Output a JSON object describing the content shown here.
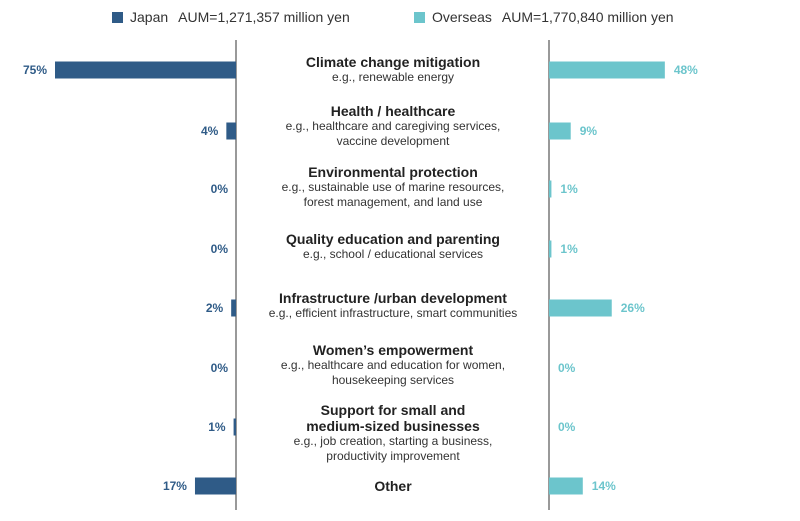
{
  "legend": {
    "japan": {
      "name": "Japan",
      "aum": "AUM=1,271,357 million yen",
      "color": "#2f5b87"
    },
    "overseas": {
      "name": "Overseas",
      "aum": "AUM=1,770,840 million yen",
      "color": "#6cc5cc"
    }
  },
  "chart_data": {
    "type": "bar",
    "orientation": "horizontal-butterfly",
    "categories": [
      {
        "title": "Climate change mitigation",
        "subtitle": [
          "e.g., renewable energy"
        ]
      },
      {
        "title": "Health / healthcare",
        "subtitle": [
          "e.g., healthcare and caregiving services,",
          "vaccine development"
        ]
      },
      {
        "title": "Environmental protection",
        "subtitle": [
          "e.g., sustainable use of marine resources,",
          "forest management, and land use"
        ]
      },
      {
        "title": "Quality education and parenting",
        "subtitle": [
          "e.g., school / educational services"
        ]
      },
      {
        "title": "Infrastructure /urban development",
        "subtitle": [
          "e.g., efficient infrastructure, smart communities"
        ]
      },
      {
        "title": "Women’s empowerment",
        "subtitle": [
          "e.g., healthcare and education for women,",
          "housekeeping services"
        ]
      },
      {
        "title": "Support for small and\nmedium-sized businesses",
        "subtitle": [
          "e.g., job creation, starting a business,",
          "productivity improvement"
        ]
      },
      {
        "title": "Other",
        "subtitle": []
      }
    ],
    "series": [
      {
        "name": "Japan",
        "values": [
          75,
          4,
          0,
          0,
          2,
          0,
          1,
          17
        ],
        "labels": [
          "75%",
          "4%",
          "0%",
          "0%",
          "2%",
          "0%",
          "1%",
          "17%"
        ]
      },
      {
        "name": "Overseas",
        "values": [
          48,
          9,
          1,
          1,
          26,
          0,
          0,
          14
        ],
        "labels": [
          "48%",
          "9%",
          "1%",
          "1%",
          "26%",
          "0%",
          "0%",
          "14%"
        ]
      }
    ],
    "unit": "%",
    "xlim": [
      0,
      75
    ],
    "grid": false,
    "legend_position": "top"
  }
}
